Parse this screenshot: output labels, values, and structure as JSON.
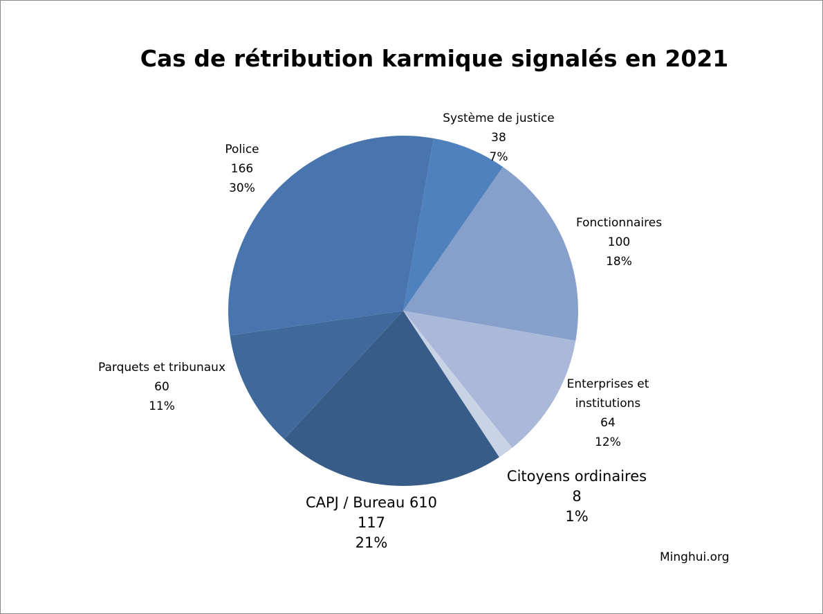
{
  "chart_data": {
    "type": "pie",
    "title": "Cas de rétribution karmique signalés en 2021",
    "categories": [
      "Système de justice",
      "Fonctionnaires",
      "Enterprises et institutions",
      "Citoyens ordinaires",
      "CAPJ / Bureau 610",
      "Parquets et tribunaux",
      "Police"
    ],
    "values": [
      38,
      100,
      64,
      8,
      117,
      60,
      166
    ],
    "percents": [
      7,
      18,
      12,
      1,
      21,
      11,
      30
    ],
    "percent_labels": [
      "7%",
      "18%",
      "12%",
      "1%",
      "21%",
      "11%",
      "30%"
    ],
    "colors": [
      "#4f81bd",
      "#879fcb",
      "#aab9d9",
      "#c9d3e6",
      "#375c87",
      "#3f689b",
      "#4875ad"
    ],
    "source": "Minghui.org"
  }
}
